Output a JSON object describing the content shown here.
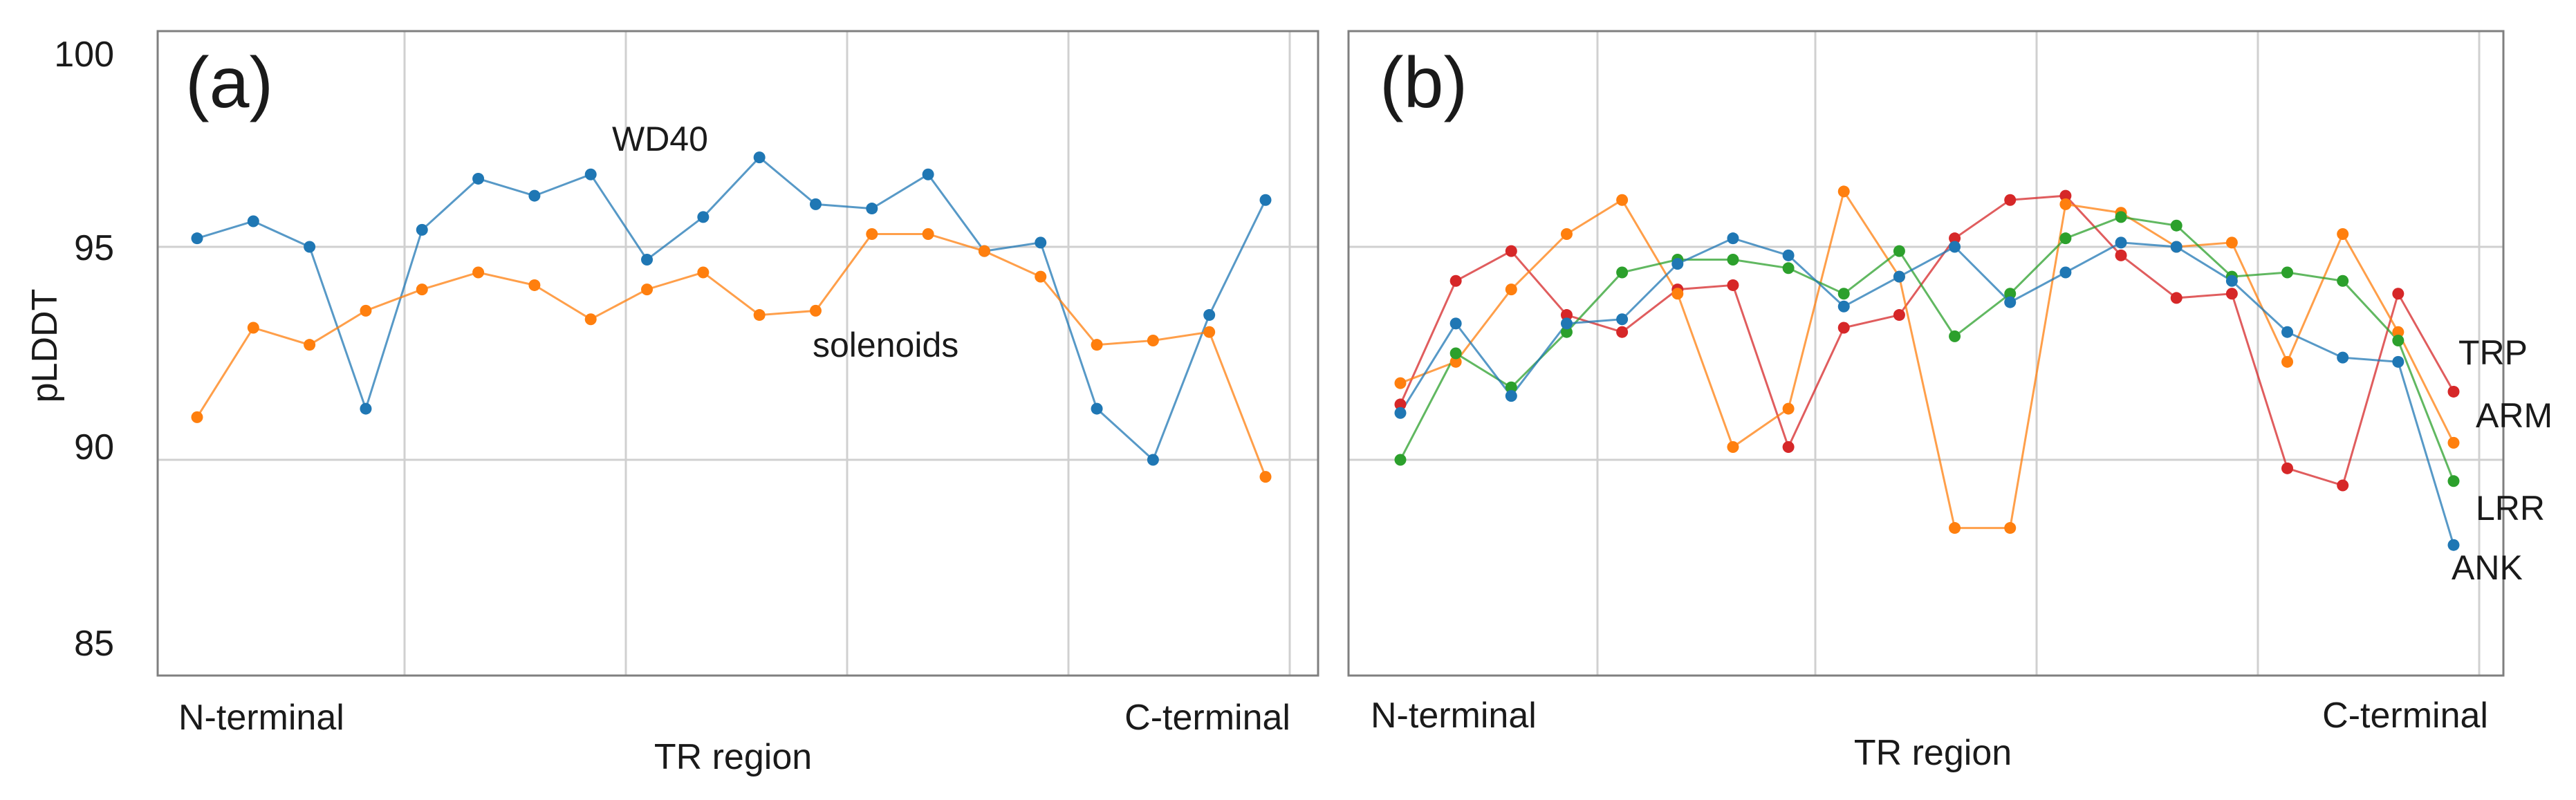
{
  "chart_data": [
    {
      "type": "line",
      "panel_label": "(a)",
      "ylabel": "pLDDT",
      "xlabel": "TR region",
      "x_start_label": "N-terminal",
      "x_end_label": "C-terminal",
      "ylim": [
        85,
        100
      ],
      "y_ticks": [
        "100",
        "95",
        "90",
        "85"
      ],
      "grid": true,
      "x": [
        1,
        2,
        3,
        4,
        5,
        6,
        7,
        8,
        9,
        10,
        11,
        12,
        13,
        14,
        15,
        16,
        17,
        18,
        19,
        20
      ],
      "series": [
        {
          "name": "WD40",
          "label": "WD40",
          "color": "#1f77b4",
          "values": [
            95.2,
            95.6,
            95.0,
            91.2,
            95.4,
            96.6,
            96.2,
            96.7,
            94.7,
            95.7,
            97.1,
            96.0,
            95.9,
            96.7,
            94.9,
            95.1,
            91.2,
            90.0,
            93.4,
            96.1
          ]
        },
        {
          "name": "solenoids",
          "label": "solenoids",
          "color": "#ff7f0e",
          "values": [
            91.0,
            93.1,
            92.7,
            93.5,
            94.0,
            94.4,
            94.1,
            93.3,
            94.0,
            94.4,
            93.4,
            93.5,
            95.3,
            95.3,
            94.9,
            94.3,
            92.7,
            92.8,
            93.0,
            89.6
          ]
        }
      ]
    },
    {
      "type": "line",
      "panel_label": "(b)",
      "xlabel": "TR region",
      "x_start_label": "N-terminal",
      "x_end_label": "C-terminal",
      "ylim": [
        85,
        100
      ],
      "grid": true,
      "x": [
        1,
        2,
        3,
        4,
        5,
        6,
        7,
        8,
        9,
        10,
        11,
        12,
        13,
        14,
        15,
        16,
        17,
        18,
        19,
        20
      ],
      "series": [
        {
          "name": "TRP",
          "label": "TRP",
          "color": "#d62728",
          "values": [
            91.3,
            94.2,
            94.9,
            93.4,
            93.0,
            94.0,
            94.1,
            90.3,
            93.1,
            93.4,
            95.2,
            96.1,
            96.2,
            94.8,
            93.8,
            93.9,
            89.8,
            89.4,
            93.9,
            91.6
          ]
        },
        {
          "name": "ARM",
          "label": "ARM",
          "color": "#ff7f0e",
          "values": [
            91.8,
            92.3,
            94.0,
            95.3,
            96.1,
            93.9,
            90.3,
            91.2,
            96.3,
            94.3,
            88.4,
            88.4,
            96.0,
            95.8,
            95.0,
            95.1,
            92.3,
            95.3,
            93.0,
            90.4
          ]
        },
        {
          "name": "LRR",
          "label": "LRR",
          "color": "#2ca02c",
          "values": [
            90.0,
            92.5,
            91.7,
            93.0,
            94.4,
            94.7,
            94.7,
            94.5,
            93.9,
            94.9,
            92.9,
            93.9,
            95.2,
            95.7,
            95.5,
            94.3,
            94.4,
            94.2,
            92.8,
            89.5
          ]
        },
        {
          "name": "ANK",
          "label": "ANK",
          "color": "#1f77b4",
          "values": [
            91.1,
            93.2,
            91.5,
            93.2,
            93.3,
            94.6,
            95.2,
            94.8,
            93.6,
            94.3,
            95.0,
            93.7,
            94.4,
            95.1,
            95.0,
            94.2,
            93.0,
            92.4,
            92.3,
            88.0
          ]
        }
      ]
    }
  ]
}
